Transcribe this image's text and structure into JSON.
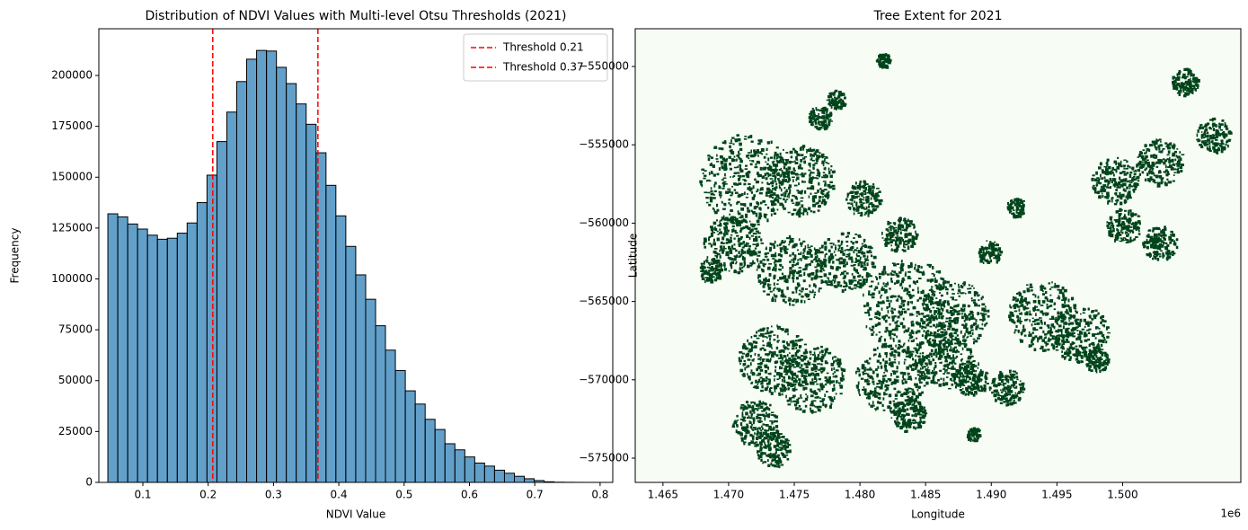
{
  "chart_data": [
    {
      "type": "histogram",
      "title": "Distribution of NDVI Values with Multi-level Otsu Thresholds (2021)",
      "xlabel": "NDVI Value",
      "ylabel": "Frequency",
      "bins": [
        0.0464,
        0.0616,
        0.0768,
        0.0919,
        0.1071,
        0.1223,
        0.1375,
        0.1527,
        0.1678,
        0.183,
        0.1982,
        0.2134,
        0.2286,
        0.2437,
        0.2589,
        0.2741,
        0.2893,
        0.3045,
        0.3196,
        0.3348,
        0.35,
        0.3652,
        0.3804,
        0.3955,
        0.4107,
        0.4259,
        0.4411,
        0.4563,
        0.4714,
        0.4866,
        0.5018,
        0.517,
        0.5322,
        0.5473,
        0.5625,
        0.5777,
        0.5929,
        0.6081,
        0.6232,
        0.6384,
        0.6536,
        0.6688,
        0.684,
        0.6991,
        0.7143,
        0.7295,
        0.7447,
        0.7599,
        0.775,
        0.7902,
        0.8054
      ],
      "values": [
        132000,
        130500,
        127000,
        124500,
        121500,
        119500,
        120000,
        122500,
        127500,
        137500,
        151000,
        167500,
        182000,
        197000,
        208000,
        212300,
        212000,
        204000,
        196000,
        186000,
        176000,
        162000,
        146000,
        131000,
        116000,
        102000,
        90000,
        77000,
        65000,
        55000,
        45000,
        38500,
        31000,
        26000,
        19000,
        16000,
        12500,
        9500,
        8000,
        6000,
        4500,
        3000,
        1800,
        900,
        300,
        100,
        50,
        20,
        10,
        5
      ],
      "color": "#1f77b4",
      "alpha": 0.7,
      "edgecolor": "#000000",
      "thresholds": [
        {
          "name": "Threshold 0.21",
          "value": 0.207,
          "color": "#ff0000"
        },
        {
          "name": "Threshold 0.37",
          "value": 0.368,
          "color": "#ff0000"
        }
      ],
      "legend": "upper right",
      "xlim": [
        0.0326,
        0.8194
      ],
      "xticks": [
        0.1,
        0.2,
        0.3,
        0.4,
        0.5,
        0.6,
        0.7,
        0.8
      ],
      "ylim": [
        0,
        222958
      ],
      "yticks": [
        0,
        25000,
        50000,
        75000,
        100000,
        125000,
        150000,
        175000,
        200000
      ]
    },
    {
      "type": "image",
      "title": "Tree Extent for 2021",
      "xlabel": "Longitude",
      "ylabel": "Latitude",
      "colors": [
        "#f7fcf5",
        "#00441b"
      ],
      "x_offset_label": "1e6",
      "xlim": [
        1462890,
        1509000
      ],
      "xticks": [
        {
          "value": 1465000,
          "label": "1.465"
        },
        {
          "value": 1470000,
          "label": "1.470"
        },
        {
          "value": 1475000,
          "label": "1.475"
        },
        {
          "value": 1480000,
          "label": "1.480"
        },
        {
          "value": 1485000,
          "label": "1.485"
        },
        {
          "value": 1490000,
          "label": "1.490"
        },
        {
          "value": 1495000,
          "label": "1.495"
        },
        {
          "value": 1500000,
          "label": "1.500"
        }
      ],
      "ylim": [
        -576548,
        -547592
      ],
      "yticks": [
        {
          "value": -550000,
          "label": "−550000"
        },
        {
          "value": -555000,
          "label": "−555000"
        },
        {
          "value": -560000,
          "label": "−560000"
        },
        {
          "value": -565000,
          "label": "−565000"
        },
        {
          "value": -570000,
          "label": "−570000"
        },
        {
          "value": -575000,
          "label": "−575000"
        }
      ]
    }
  ]
}
